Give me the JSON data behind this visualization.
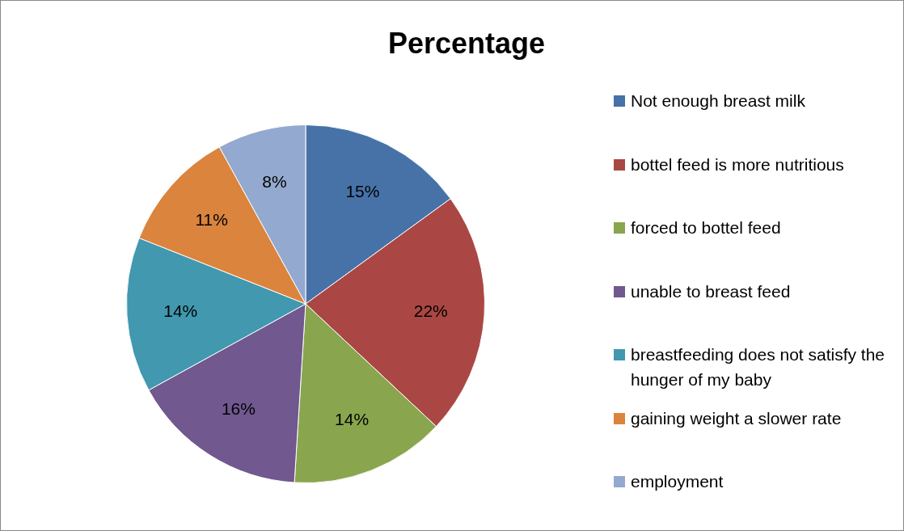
{
  "chart_data": {
    "type": "pie",
    "title": "Percentage",
    "categories": [
      "Not enough breast milk",
      "bottel feed is more nutritious",
      "forced to bottel feed",
      "unable to breast feed",
      "breastfeeding does not satisfy the hunger of my baby",
      "gaining weight a slower rate",
      "employment"
    ],
    "values": [
      15,
      22,
      14,
      16,
      14,
      11,
      8
    ],
    "colors": [
      "#4672a8",
      "#aa4744",
      "#89a54e",
      "#71588f",
      "#4198af",
      "#db843d",
      "#93a9cf"
    ],
    "value_labels": [
      "15%",
      "22%",
      "14%",
      "16%",
      "14%",
      "11%",
      "8%"
    ],
    "legend": "right"
  }
}
